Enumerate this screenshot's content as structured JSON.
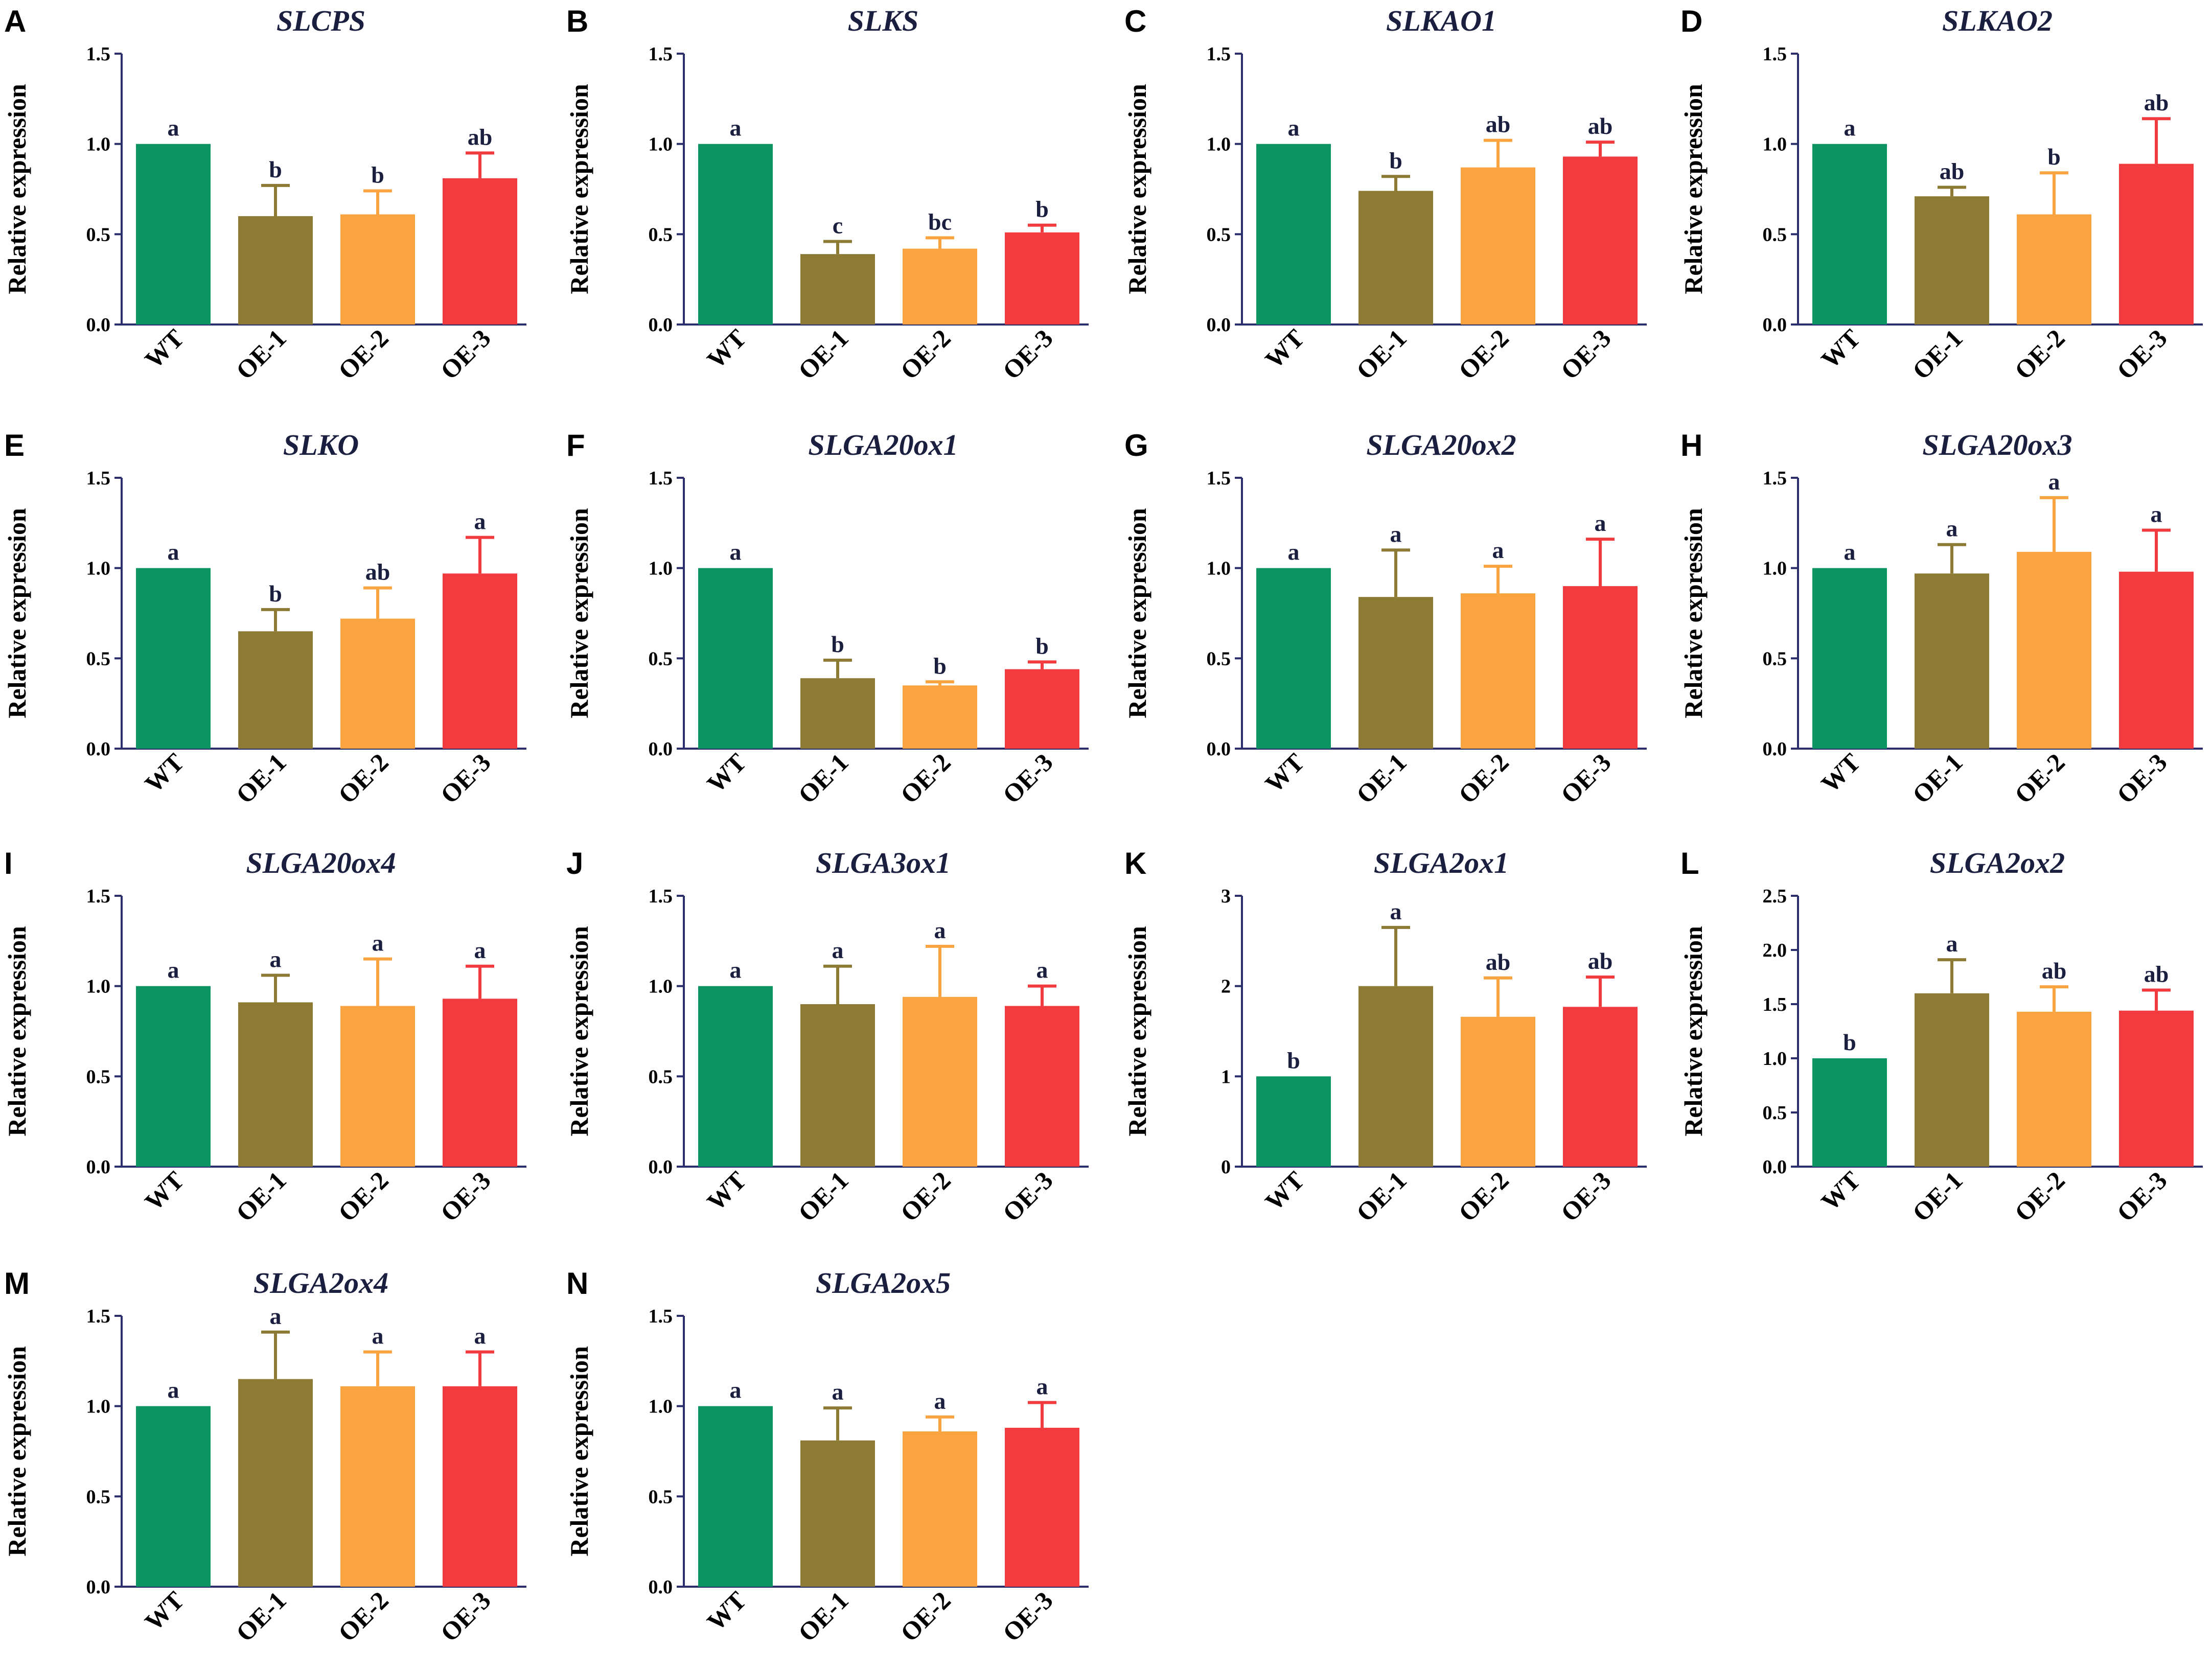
{
  "figure": {
    "category_labels": [
      "WT",
      "OE-1",
      "OE-2",
      "OE-3"
    ],
    "colors": {
      "WT": "#0c9563",
      "OE-1": "#8c7a35",
      "OE-2": "#f9a440",
      "OE-3": "#f23b3f"
    },
    "ylabel": "Relative expression"
  },
  "chart_data": [
    {
      "type": "bar",
      "panel": "A",
      "title": "SLCPS",
      "xlabel": "",
      "ylabel": "Relative expression",
      "categories": [
        "WT",
        "OE-1",
        "OE-2",
        "OE-3"
      ],
      "values": [
        1.0,
        0.6,
        0.61,
        0.81
      ],
      "errors": [
        0.0,
        0.17,
        0.13,
        0.14
      ],
      "significance": [
        "a",
        "b",
        "b",
        "ab"
      ],
      "ylim": [
        0,
        1.5
      ],
      "yticks": [
        "0.0",
        "0.5",
        "1.0",
        "1.5"
      ]
    },
    {
      "type": "bar",
      "panel": "B",
      "title": "SLKS",
      "xlabel": "",
      "ylabel": "Relative expression",
      "categories": [
        "WT",
        "OE-1",
        "OE-2",
        "OE-3"
      ],
      "values": [
        1.0,
        0.39,
        0.42,
        0.51
      ],
      "errors": [
        0.0,
        0.07,
        0.06,
        0.04
      ],
      "significance": [
        "a",
        "c",
        "bc",
        "b"
      ],
      "ylim": [
        0,
        1.5
      ],
      "yticks": [
        "0.0",
        "0.5",
        "1.0",
        "1.5"
      ]
    },
    {
      "type": "bar",
      "panel": "C",
      "title": "SLKAO1",
      "xlabel": "",
      "ylabel": "Relative expression",
      "categories": [
        "WT",
        "OE-1",
        "OE-2",
        "OE-3"
      ],
      "values": [
        1.0,
        0.74,
        0.87,
        0.93
      ],
      "errors": [
        0.0,
        0.08,
        0.15,
        0.08
      ],
      "significance": [
        "a",
        "b",
        "ab",
        "ab"
      ],
      "ylim": [
        0,
        1.5
      ],
      "yticks": [
        "0.0",
        "0.5",
        "1.0",
        "1.5"
      ]
    },
    {
      "type": "bar",
      "panel": "D",
      "title": "SLKAO2",
      "xlabel": "",
      "ylabel": "Relative expression",
      "categories": [
        "WT",
        "OE-1",
        "OE-2",
        "OE-3"
      ],
      "values": [
        1.0,
        0.71,
        0.61,
        0.89
      ],
      "errors": [
        0.0,
        0.05,
        0.23,
        0.25
      ],
      "significance": [
        "a",
        "ab",
        "b",
        "ab"
      ],
      "ylim": [
        0,
        1.5
      ],
      "yticks": [
        "0.0",
        "0.5",
        "1.0",
        "1.5"
      ]
    },
    {
      "type": "bar",
      "panel": "E",
      "title": "SLKO",
      "xlabel": "",
      "ylabel": "Relative expression",
      "categories": [
        "WT",
        "OE-1",
        "OE-2",
        "OE-3"
      ],
      "values": [
        1.0,
        0.65,
        0.72,
        0.97
      ],
      "errors": [
        0.0,
        0.12,
        0.17,
        0.2
      ],
      "significance": [
        "a",
        "b",
        "ab",
        "a"
      ],
      "ylim": [
        0,
        1.5
      ],
      "yticks": [
        "0.0",
        "0.5",
        "1.0",
        "1.5"
      ]
    },
    {
      "type": "bar",
      "panel": "F",
      "title": "SLGA20ox1",
      "xlabel": "",
      "ylabel": "Relative expression",
      "categories": [
        "WT",
        "OE-1",
        "OE-2",
        "OE-3"
      ],
      "values": [
        1.0,
        0.39,
        0.35,
        0.44
      ],
      "errors": [
        0.0,
        0.1,
        0.02,
        0.04
      ],
      "significance": [
        "a",
        "b",
        "b",
        "b"
      ],
      "ylim": [
        0,
        1.5
      ],
      "yticks": [
        "0.0",
        "0.5",
        "1.0",
        "1.5"
      ]
    },
    {
      "type": "bar",
      "panel": "G",
      "title": "SLGA20ox2",
      "xlabel": "",
      "ylabel": "Relative expression",
      "categories": [
        "WT",
        "OE-1",
        "OE-2",
        "OE-3"
      ],
      "values": [
        1.0,
        0.84,
        0.86,
        0.9
      ],
      "errors": [
        0.0,
        0.26,
        0.15,
        0.26
      ],
      "significance": [
        "a",
        "a",
        "a",
        "a"
      ],
      "ylim": [
        0,
        1.5
      ],
      "yticks": [
        "0.0",
        "0.5",
        "1.0",
        "1.5"
      ]
    },
    {
      "type": "bar",
      "panel": "H",
      "title": "SLGA20ox3",
      "xlabel": "",
      "ylabel": "Relative expression",
      "categories": [
        "WT",
        "OE-1",
        "OE-2",
        "OE-3"
      ],
      "values": [
        1.0,
        0.97,
        1.09,
        0.98
      ],
      "errors": [
        0.0,
        0.16,
        0.3,
        0.23
      ],
      "significance": [
        "a",
        "a",
        "a",
        "a"
      ],
      "ylim": [
        0,
        1.5
      ],
      "yticks": [
        "0.0",
        "0.5",
        "1.0",
        "1.5"
      ]
    },
    {
      "type": "bar",
      "panel": "I",
      "title": "SLGA20ox4",
      "xlabel": "",
      "ylabel": "Relative expression",
      "categories": [
        "WT",
        "OE-1",
        "OE-2",
        "OE-3"
      ],
      "values": [
        1.0,
        0.91,
        0.89,
        0.93
      ],
      "errors": [
        0.0,
        0.15,
        0.26,
        0.18
      ],
      "significance": [
        "a",
        "a",
        "a",
        "a"
      ],
      "ylim": [
        0,
        1.5
      ],
      "yticks": [
        "0.0",
        "0.5",
        "1.0",
        "1.5"
      ]
    },
    {
      "type": "bar",
      "panel": "J",
      "title": "SLGA3ox1",
      "xlabel": "",
      "ylabel": "Relative expression",
      "categories": [
        "WT",
        "OE-1",
        "OE-2",
        "OE-3"
      ],
      "values": [
        1.0,
        0.9,
        0.94,
        0.89
      ],
      "errors": [
        0.0,
        0.21,
        0.28,
        0.11
      ],
      "significance": [
        "a",
        "a",
        "a",
        "a"
      ],
      "ylim": [
        0,
        1.5
      ],
      "yticks": [
        "0.0",
        "0.5",
        "1.0",
        "1.5"
      ]
    },
    {
      "type": "bar",
      "panel": "K",
      "title": "SLGA2ox1",
      "xlabel": "",
      "ylabel": "Relative expression",
      "categories": [
        "WT",
        "OE-1",
        "OE-2",
        "OE-3"
      ],
      "values": [
        1.0,
        2.0,
        1.66,
        1.77
      ],
      "errors": [
        0.0,
        0.65,
        0.43,
        0.33
      ],
      "significance": [
        "b",
        "a",
        "ab",
        "ab"
      ],
      "ylim": [
        0,
        3
      ],
      "yticks": [
        "0",
        "1",
        "2",
        "3"
      ]
    },
    {
      "type": "bar",
      "panel": "L",
      "title": "SLGA2ox2",
      "xlabel": "",
      "ylabel": "Relative expression",
      "categories": [
        "WT",
        "OE-1",
        "OE-2",
        "OE-3"
      ],
      "values": [
        1.0,
        1.6,
        1.43,
        1.44
      ],
      "errors": [
        0.0,
        0.31,
        0.23,
        0.19
      ],
      "significance": [
        "b",
        "a",
        "ab",
        "ab"
      ],
      "ylim": [
        0,
        2.5
      ],
      "yticks": [
        "0.0",
        "0.5",
        "1.0",
        "1.5",
        "2.0",
        "2.5"
      ]
    },
    {
      "type": "bar",
      "panel": "M",
      "title": "SLGA2ox4",
      "xlabel": "",
      "ylabel": "Relative expression",
      "categories": [
        "WT",
        "OE-1",
        "OE-2",
        "OE-3"
      ],
      "values": [
        1.0,
        1.15,
        1.11,
        1.11
      ],
      "errors": [
        0.0,
        0.26,
        0.19,
        0.19
      ],
      "significance": [
        "a",
        "a",
        "a",
        "a"
      ],
      "ylim": [
        0,
        1.5
      ],
      "yticks": [
        "0.0",
        "0.5",
        "1.0",
        "1.5"
      ]
    },
    {
      "type": "bar",
      "panel": "N",
      "title": "SLGA2ox5",
      "xlabel": "",
      "ylabel": "Relative expression",
      "categories": [
        "WT",
        "OE-1",
        "OE-2",
        "OE-3"
      ],
      "values": [
        1.0,
        0.81,
        0.86,
        0.88
      ],
      "errors": [
        0.0,
        0.18,
        0.08,
        0.14
      ],
      "significance": [
        "a",
        "a",
        "a",
        "a"
      ],
      "ylim": [
        0,
        1.5
      ],
      "yticks": [
        "0.0",
        "0.5",
        "1.0",
        "1.5"
      ]
    }
  ]
}
